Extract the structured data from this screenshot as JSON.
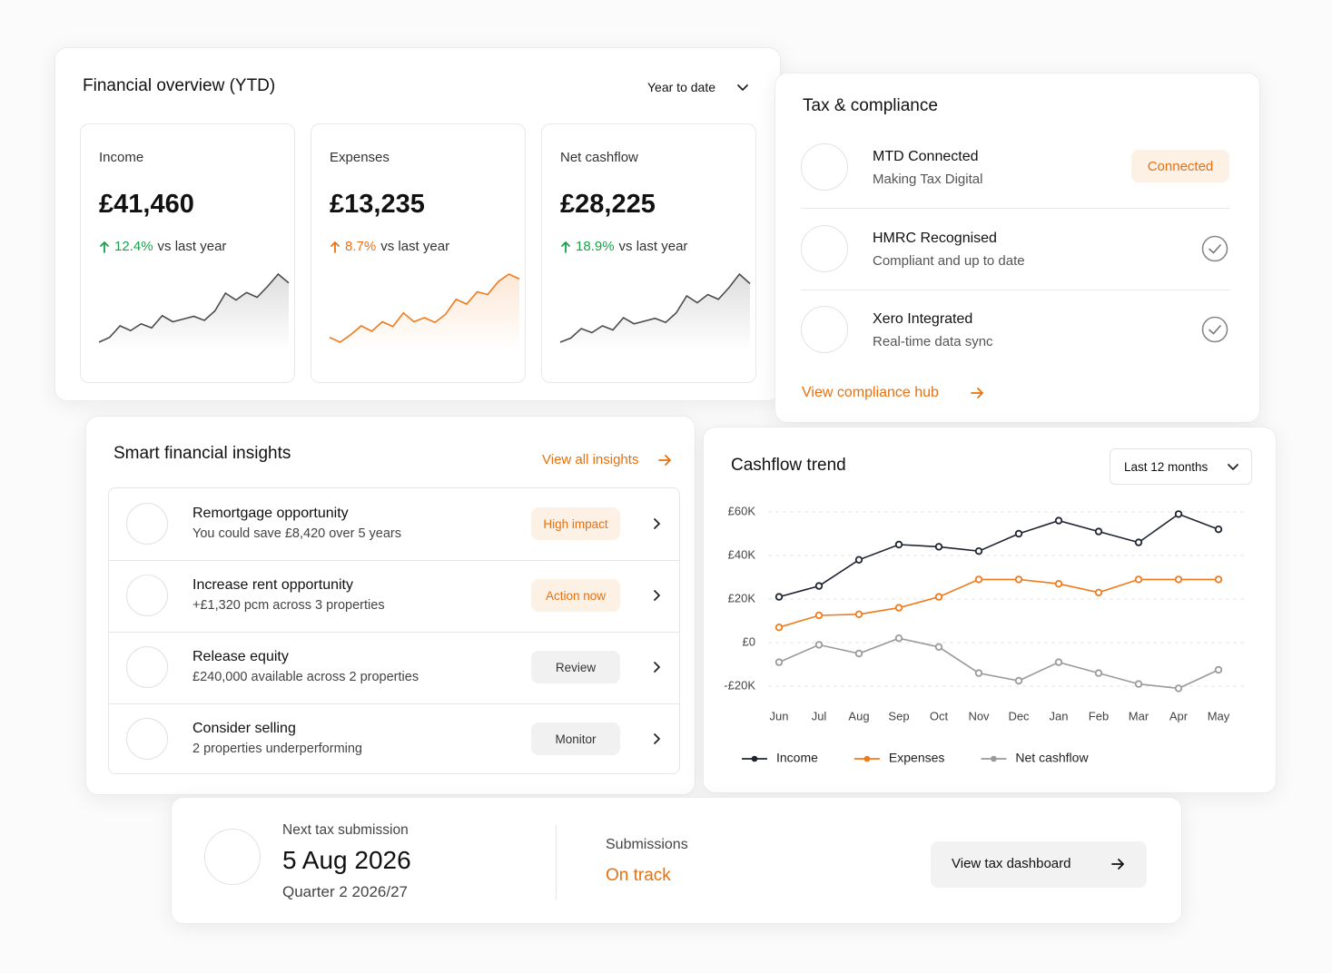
{
  "overview": {
    "title": "Financial overview (YTD)",
    "period": "Year to date",
    "stats": [
      {
        "label": "Income",
        "value": "£41,460",
        "change": "12.4%",
        "comparison": "vs last year",
        "color": "#16a34a",
        "line_color": "#4b4b4b",
        "sparkline": [
          0,
          7,
          24,
          17,
          27,
          21,
          39,
          30,
          34,
          38,
          32,
          46,
          72,
          62,
          73,
          66,
          82,
          100,
          87
        ]
      },
      {
        "label": "Expenses",
        "value": "£13,235",
        "change": "8.7%",
        "comparison": "vs last year",
        "color": "#ea7317",
        "line_color": "#f07a1a",
        "sparkline": [
          7,
          0,
          11,
          24,
          16,
          30,
          23,
          43,
          30,
          36,
          29,
          41,
          63,
          56,
          74,
          70,
          89,
          100,
          93
        ]
      },
      {
        "label": "Net cashflow",
        "value": "£28,225",
        "change": "18.9%",
        "comparison": "vs last year",
        "color": "#16a34a",
        "line_color": "#4b4b4b",
        "sparkline": [
          0,
          6,
          20,
          14,
          24,
          18,
          36,
          27,
          31,
          35,
          29,
          43,
          68,
          58,
          70,
          63,
          80,
          100,
          86
        ]
      }
    ]
  },
  "compliance": {
    "title": "Tax & compliance",
    "items": [
      {
        "title": "MTD Connected",
        "subtitle": "Making Tax Digital",
        "status": "Connected"
      },
      {
        "title": "HMRC Recognised",
        "subtitle": "Compliant and up to date",
        "verified": true
      },
      {
        "title": "Xero Integrated",
        "subtitle": "Real-time data sync",
        "verified": true
      }
    ],
    "link": "View compliance hub"
  },
  "insights": {
    "title": "Smart financial insights",
    "link": "View all insights",
    "items": [
      {
        "title": "Remortgage opportunity",
        "subtitle": "You could save £8,420 over 5 years",
        "badge": "High impact",
        "badge_color": "#e8700f",
        "badge_bg": "#fdf1e6"
      },
      {
        "title": "Increase rent opportunity",
        "subtitle": "+£1,320 pcm across 3 properties",
        "badge": "Action now",
        "badge_color": "#e8700f",
        "badge_bg": "#fdf1e6"
      },
      {
        "title": "Release equity",
        "subtitle": "£240,000 available across 2 properties",
        "badge": "Review",
        "badge_color": "#333333",
        "badge_bg": "#f1f1f1"
      },
      {
        "title": "Consider selling",
        "subtitle": "2 properties underperforming",
        "badge": "Monitor",
        "badge_color": "#333333",
        "badge_bg": "#f1f1f1"
      }
    ]
  },
  "chart_data": {
    "type": "line",
    "title": "Cashflow trend",
    "period": "Last 12 months",
    "categories": [
      "Jun",
      "Jul",
      "Aug",
      "Sep",
      "Oct",
      "Nov",
      "Dec",
      "Jan",
      "Feb",
      "Mar",
      "Apr",
      "May"
    ],
    "series": [
      {
        "name": "Income",
        "color": "#1f2430",
        "values": [
          21000,
          26000,
          38000,
          45000,
          44000,
          42000,
          50000,
          56000,
          51000,
          46000,
          59000,
          52000
        ]
      },
      {
        "name": "Expenses",
        "color": "#f07a1a",
        "values": [
          7000,
          12500,
          13000,
          16000,
          21000,
          29000,
          29000,
          27000,
          23000,
          29000,
          29000,
          29000
        ]
      },
      {
        "name": "Net cashflow",
        "color": "#9a9a9a",
        "values": [
          -9000,
          -1000,
          -5000,
          2000,
          -2000,
          -14000,
          -17500,
          -9000,
          -14000,
          -19000,
          -21000,
          -12500
        ]
      }
    ],
    "ylim": [
      -25000,
      65000
    ],
    "yticks": [
      {
        "value": -20000,
        "label": "-£20K"
      },
      {
        "value": 0,
        "label": "£0"
      },
      {
        "value": 20000,
        "label": "£20K"
      },
      {
        "value": 40000,
        "label": "£40K"
      },
      {
        "value": 60000,
        "label": "£60K"
      }
    ],
    "grid": true,
    "legend": "bottom"
  },
  "submission": {
    "label": "Next tax submission",
    "date": "5 Aug 2026",
    "quarter": "Quarter 2 2026/27",
    "status_label": "Submissions",
    "status": "On track",
    "status_color": "#e8700f",
    "button": "View tax dashboard"
  }
}
